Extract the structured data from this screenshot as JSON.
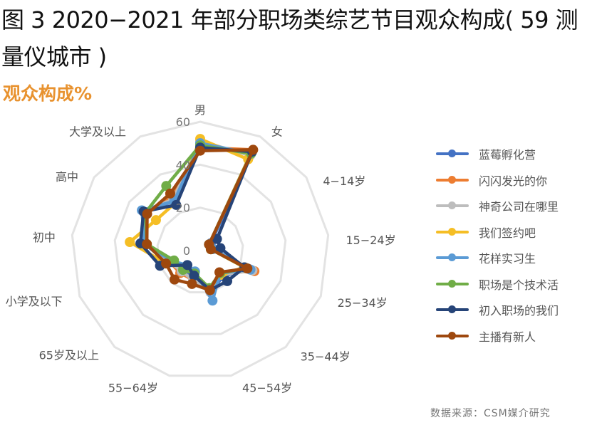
{
  "header": {
    "title": "图 3 2020−2021 年部分职场类综艺节目观众构成( 59 测量仪城市 )",
    "subtitle": "观众构成%"
  },
  "footer": {
    "source": "数据来源：CSM媒介研究"
  },
  "chart_data": {
    "type": "radar",
    "title": "观众构成%",
    "categories": [
      "男",
      "女",
      "4−14岁",
      "15−24岁",
      "25−34岁",
      "35−44岁",
      "45−54岁",
      "55−64岁",
      "65岁及以上",
      "小学及以下",
      "初中",
      "高中",
      "大学及以上"
    ],
    "rlim": [
      0,
      60
    ],
    "ticks": [
      "0",
      "20",
      "40",
      "60"
    ],
    "tick_values": [
      0,
      20,
      40,
      60
    ],
    "grid": true,
    "legend_position": "right",
    "series": [
      {
        "name": "蓝莓孵化营",
        "color": "#4472C4",
        "values": [
          50,
          51,
          6,
          6,
          24,
          16,
          20,
          13,
          12,
          16,
          26,
          32,
          26
        ]
      },
      {
        "name": "闪闪发光的你",
        "color": "#ED7D31",
        "values": [
          48,
          53,
          5,
          5,
          27,
          14,
          19,
          14,
          14,
          15,
          25,
          31,
          28
        ]
      },
      {
        "name": "神奇公司在哪里",
        "color": "#BDBDBD",
        "values": [
          51,
          50,
          5,
          5,
          26,
          15,
          20,
          14,
          13,
          15,
          25,
          32,
          27
        ]
      },
      {
        "name": "我们签约吧",
        "color": "#F5BE25",
        "values": [
          52,
          48,
          5,
          5,
          22,
          15,
          18,
          12,
          10,
          17,
          33,
          25,
          25
        ]
      },
      {
        "name": "花样实习生",
        "color": "#5B9BD5",
        "values": [
          50,
          51,
          5,
          6,
          25,
          14,
          24,
          10,
          9,
          14,
          26,
          33,
          26
        ]
      },
      {
        "name": "职场是个技术活",
        "color": "#70AD47",
        "values": [
          49,
          51,
          5,
          5,
          23,
          14,
          18,
          11,
          12,
          13,
          25,
          31,
          34
        ]
      },
      {
        "name": "初入职场的我们",
        "color": "#264478",
        "values": [
          48,
          52,
          9.5,
          9.5,
          22,
          19,
          19,
          12,
          9,
          20,
          28,
          32,
          24
        ]
      },
      {
        "name": "主播有新人",
        "color": "#9E480E",
        "values": [
          46.5,
          53,
          5,
          5,
          23.5,
          13.5,
          19,
          16,
          18,
          17,
          25,
          30,
          30
        ]
      }
    ]
  }
}
